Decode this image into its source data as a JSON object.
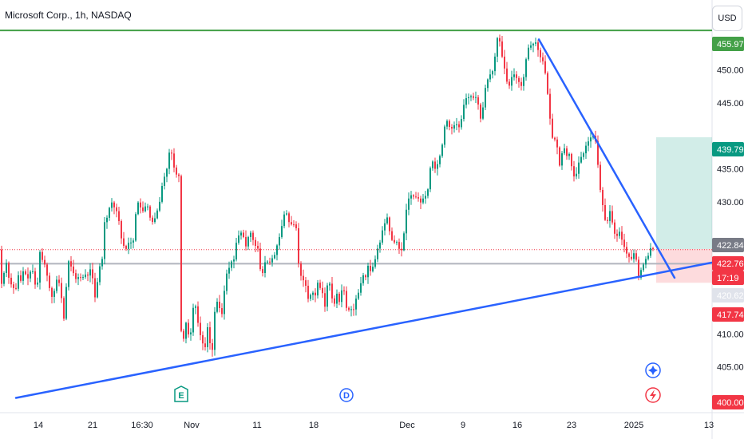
{
  "header": {
    "legend": "Microsoft Corp., 1h, NASDAQ",
    "currency_button": "USD"
  },
  "chart_data": {
    "type": "candlestick",
    "symbol": "Microsoft Corp.",
    "interval": "1h",
    "exchange": "NASDAQ",
    "ylim": [
      398,
      458
    ],
    "y_ticks": [
      "450.00",
      "445.00",
      "435.00",
      "430.00",
      "410.00",
      "405.00"
    ],
    "x_ticks": [
      "14",
      "21",
      "16:30",
      "Nov",
      "11",
      "18",
      "Dec",
      "9",
      "16",
      "23",
      "2025",
      "13"
    ],
    "price_path": [
      [
        0,
        416.2
      ],
      [
        6,
        419.5
      ],
      [
        9,
        421.0
      ],
      [
        12,
        418.0
      ],
      [
        16,
        417.2
      ],
      [
        20,
        416.5
      ],
      [
        24,
        419.2
      ],
      [
        27,
        417.8
      ],
      [
        30,
        419.8
      ],
      [
        34,
        418.6
      ],
      [
        37,
        418.2
      ],
      [
        40,
        420.6
      ],
      [
        44,
        417.6
      ],
      [
        47,
        416.8
      ],
      [
        50,
        422.6
      ],
      [
        54,
        421.0
      ],
      [
        57,
        420.4
      ],
      [
        60,
        418.5
      ],
      [
        64,
        416.0
      ],
      [
        67,
        415.2
      ],
      [
        70,
        417.8
      ],
      [
        73,
        418.6
      ],
      [
        77,
        416.2
      ],
      [
        80,
        411.5
      ],
      [
        84,
        417.9
      ],
      [
        86,
        421.2
      ],
      [
        88,
        420.4
      ],
      [
        91,
        420.0
      ],
      [
        94,
        418.4
      ],
      [
        97,
        418.2
      ],
      [
        100,
        419.0
      ],
      [
        103,
        418.0
      ],
      [
        106,
        419.2
      ],
      [
        110,
        418.6
      ],
      [
        113,
        420.0
      ],
      [
        117,
        418.2
      ],
      [
        120,
        415.0
      ],
      [
        123,
        418.4
      ],
      [
        126,
        420.6
      ],
      [
        129,
        421.5
      ],
      [
        132,
        428.0
      ],
      [
        135,
        427.5
      ],
      [
        138,
        429.4
      ],
      [
        141,
        430.0
      ],
      [
        144,
        429.0
      ],
      [
        147,
        428.5
      ],
      [
        150,
        426.8
      ],
      [
        153,
        424.0
      ],
      [
        156,
        423.2
      ],
      [
        159,
        422.8
      ],
      [
        162,
        424.0
      ],
      [
        165,
        423.8
      ],
      [
        168,
        424.2
      ],
      [
        172,
        430.5
      ],
      [
        175,
        429.3
      ],
      [
        178,
        429.0
      ],
      [
        181,
        428.2
      ],
      [
        184,
        430.4
      ],
      [
        187,
        428.2
      ],
      [
        190,
        427.0
      ],
      [
        193,
        426.9
      ],
      [
        197,
        428.5
      ],
      [
        200,
        429.6
      ],
      [
        204,
        432.8
      ],
      [
        207,
        434.0
      ],
      [
        210,
        435.2
      ],
      [
        213,
        437.9
      ],
      [
        216,
        437.2
      ],
      [
        219,
        434.8
      ],
      [
        222,
        434.0
      ],
      [
        225,
        433.9
      ],
      [
        227,
        410.8
      ],
      [
        230,
        408.7
      ],
      [
        233,
        412.0
      ],
      [
        236,
        410.0
      ],
      [
        239,
        409.5
      ],
      [
        242,
        413.8
      ],
      [
        245,
        414.6
      ],
      [
        248,
        412.0
      ],
      [
        251,
        410.0
      ],
      [
        254,
        408.8
      ],
      [
        257,
        407.3
      ],
      [
        260,
        411.4
      ],
      [
        263,
        409.0
      ],
      [
        266,
        406.5
      ],
      [
        269,
        413.0
      ],
      [
        272,
        415.0
      ],
      [
        275,
        414.2
      ],
      [
        278,
        412.4
      ],
      [
        281,
        416.0
      ],
      [
        284,
        419.0
      ],
      [
        287,
        419.8
      ],
      [
        290,
        421.0
      ],
      [
        293,
        420.8
      ],
      [
        296,
        423.6
      ],
      [
        299,
        424.8
      ],
      [
        302,
        425.4
      ],
      [
        305,
        425.0
      ],
      [
        308,
        423.0
      ],
      [
        311,
        424.5
      ],
      [
        314,
        425.5
      ],
      [
        317,
        424.4
      ],
      [
        320,
        423.3
      ],
      [
        323,
        423.5
      ],
      [
        326,
        420.0
      ],
      [
        329,
        418.9
      ],
      [
        332,
        420.8
      ],
      [
        335,
        421.0
      ],
      [
        338,
        420.7
      ],
      [
        341,
        421.4
      ],
      [
        344,
        421.7
      ],
      [
        347,
        423.2
      ],
      [
        350,
        424.4
      ],
      [
        353,
        426.0
      ],
      [
        356,
        428.0
      ],
      [
        359,
        428.5
      ],
      [
        362,
        427.0
      ],
      [
        365,
        426.6
      ],
      [
        368,
        426.5
      ],
      [
        371,
        427.0
      ],
      [
        374,
        421.0
      ],
      [
        377,
        418.9
      ],
      [
        380,
        418.2
      ],
      [
        383,
        417.7
      ],
      [
        386,
        415.2
      ],
      [
        389,
        415.8
      ],
      [
        392,
        416.4
      ],
      [
        395,
        415.4
      ],
      [
        398,
        417.9
      ],
      [
        401,
        417.0
      ],
      [
        404,
        416.7
      ],
      [
        407,
        413.5
      ],
      [
        410,
        417.2
      ],
      [
        413,
        418.0
      ],
      [
        416,
        415.6
      ],
      [
        419,
        414.2
      ],
      [
        422,
        416.4
      ],
      [
        425,
        414.5
      ],
      [
        428,
        416.5
      ],
      [
        431,
        417.0
      ],
      [
        434,
        414.0
      ],
      [
        437,
        413.6
      ],
      [
        440,
        413.8
      ],
      [
        443,
        413.4
      ],
      [
        446,
        415.2
      ],
      [
        449,
        416.0
      ],
      [
        452,
        417.4
      ],
      [
        455,
        419.0
      ],
      [
        458,
        418.2
      ],
      [
        461,
        420.5
      ],
      [
        464,
        419.4
      ],
      [
        467,
        420.0
      ],
      [
        470,
        421.0
      ],
      [
        473,
        422.8
      ],
      [
        476,
        423.5
      ],
      [
        479,
        425.5
      ],
      [
        482,
        426.5
      ],
      [
        485,
        428.0
      ],
      [
        488,
        425.8
      ],
      [
        491,
        424.3
      ],
      [
        494,
        423.8
      ],
      [
        497,
        424.1
      ],
      [
        500,
        423.0
      ],
      [
        503,
        422.3
      ],
      [
        506,
        424.5
      ],
      [
        508,
        427.4
      ],
      [
        511,
        430.2
      ],
      [
        514,
        430.8
      ],
      [
        517,
        431.2
      ],
      [
        520,
        430.4
      ],
      [
        523,
        431.0
      ],
      [
        526,
        430.0
      ],
      [
        529,
        429.8
      ],
      [
        532,
        431.2
      ],
      [
        535,
        430.6
      ],
      [
        538,
        433.2
      ],
      [
        541,
        437.0
      ],
      [
        544,
        435.2
      ],
      [
        547,
        434.8
      ],
      [
        550,
        436.6
      ],
      [
        553,
        437.3
      ],
      [
        556,
        440.0
      ],
      [
        559,
        442.8
      ],
      [
        562,
        441.7
      ],
      [
        565,
        441.0
      ],
      [
        568,
        441.2
      ],
      [
        571,
        442.0
      ],
      [
        574,
        441.5
      ],
      [
        577,
        441.1
      ],
      [
        580,
        444.0
      ],
      [
        583,
        445.4
      ],
      [
        586,
        446.0
      ],
      [
        589,
        445.7
      ],
      [
        592,
        446.3
      ],
      [
        595,
        445.2
      ],
      [
        598,
        446.5
      ],
      [
        601,
        443.0
      ],
      [
        604,
        442.2
      ],
      [
        607,
        446.4
      ],
      [
        610,
        448.1
      ],
      [
        613,
        449.0
      ],
      [
        616,
        449.6
      ],
      [
        619,
        450.0
      ],
      [
        622,
        454.0
      ],
      [
        625,
        455.6
      ],
      [
        628,
        453.0
      ],
      [
        631,
        451.0
      ],
      [
        634,
        449.4
      ],
      [
        637,
        447.0
      ],
      [
        640,
        448.2
      ],
      [
        643,
        449.6
      ],
      [
        646,
        449.0
      ],
      [
        649,
        448.5
      ],
      [
        652,
        447.8
      ],
      [
        655,
        447.3
      ],
      [
        658,
        450.5
      ],
      [
        661,
        452.7
      ],
      [
        664,
        454.0
      ],
      [
        667,
        453.4
      ],
      [
        670,
        454.5
      ],
      [
        673,
        453.8
      ],
      [
        676,
        452.2
      ],
      [
        679,
        451.6
      ],
      [
        682,
        451.0
      ],
      [
        685,
        448.0
      ],
      [
        688,
        444.7
      ],
      [
        691,
        440.5
      ],
      [
        694,
        438.9
      ],
      [
        697,
        440.0
      ],
      [
        700,
        436.5
      ],
      [
        703,
        434.5
      ],
      [
        706,
        440.2
      ],
      [
        709,
        436.0
      ],
      [
        712,
        437.9
      ],
      [
        715,
        436.6
      ],
      [
        718,
        434.2
      ],
      [
        721,
        433.5
      ],
      [
        724,
        435.0
      ],
      [
        727,
        436.9
      ],
      [
        730,
        436.7
      ],
      [
        733,
        438.0
      ],
      [
        736,
        439.0
      ],
      [
        739,
        439.3
      ],
      [
        742,
        440.2
      ],
      [
        745,
        439.8
      ],
      [
        748,
        438.6
      ],
      [
        751,
        432.6
      ],
      [
        754,
        431.0
      ],
      [
        757,
        428.0
      ],
      [
        760,
        426.5
      ],
      [
        763,
        427.7
      ],
      [
        766,
        429.5
      ],
      [
        768,
        426.0
      ],
      [
        771,
        425.0
      ],
      [
        774,
        424.8
      ],
      [
        777,
        425.6
      ],
      [
        780,
        424.0
      ],
      [
        783,
        423.0
      ],
      [
        786,
        422.0
      ],
      [
        789,
        421.6
      ],
      [
        792,
        421.3
      ],
      [
        795,
        422.4
      ],
      [
        798,
        421.0
      ],
      [
        801,
        418.0
      ],
      [
        804,
        420.0
      ],
      [
        807,
        420.6
      ],
      [
        810,
        421.5
      ],
      [
        813,
        421.9
      ],
      [
        816,
        423.2
      ],
      [
        819,
        422.76
      ]
    ],
    "horizontal_lines": [
      {
        "kind": "resistance",
        "value": 455.97,
        "color": "#43a047"
      },
      {
        "kind": "horizontal",
        "value": 420.62,
        "color": "#b2b5be"
      },
      {
        "kind": "last-price",
        "value": 422.76,
        "color": "#f23645"
      }
    ],
    "trendlines": [
      {
        "kind": "descending",
        "from": [
          675,
          454.6
        ],
        "to": [
          845,
          418.5
        ],
        "color": "#2962ff"
      },
      {
        "kind": "ascending",
        "from": [
          20,
          400.3
        ],
        "to": [
          892,
          420.8
        ],
        "color": "#2962ff"
      }
    ],
    "position": {
      "entry": 422.84,
      "target": 439.79,
      "stop": 417.74,
      "x_start": 822,
      "x_end": 892
    },
    "price_tags": [
      {
        "label": "455.97",
        "value": 455.97,
        "color": "#43a047"
      },
      {
        "label": "439.79",
        "value": 439.79,
        "color": "#089981"
      },
      {
        "label": "422.84",
        "value": 422.84,
        "color": "#787b86"
      },
      {
        "label": "422.76",
        "value": 422.76,
        "color": "#f23645"
      },
      {
        "label": "17:19",
        "value": 421.7,
        "color": "#f23645"
      },
      {
        "label": "420.62",
        "value": 420.62,
        "color": "#e0e3eb",
        "text_color": "#131722"
      },
      {
        "label": "417.74",
        "value": 417.74,
        "color": "#f23645"
      },
      {
        "label": "400.00",
        "value": 400.0,
        "color": "#f23645"
      }
    ],
    "events": [
      {
        "label": "E",
        "color": "#089981"
      },
      {
        "label": "D",
        "color": "#2962ff"
      }
    ],
    "future_events": [
      {
        "icon": "star-icon",
        "color": "#2962ff"
      },
      {
        "icon": "lightning-icon",
        "color": "#f23645"
      }
    ]
  }
}
